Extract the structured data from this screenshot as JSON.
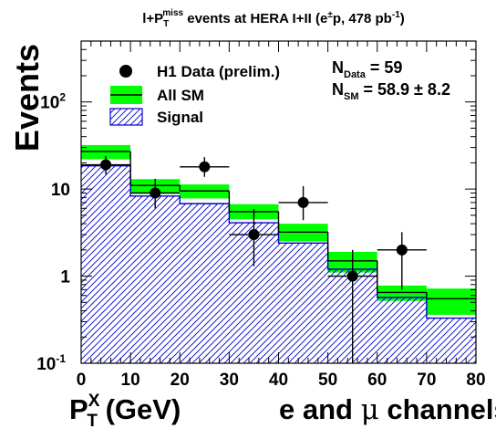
{
  "chart_data": {
    "type": "histogram",
    "title": {
      "prefix": "l+P",
      "sub": "T",
      "sup": "miss",
      "mid": " events at HERA I+II (e",
      "pm": "±",
      "tail": "p, 478 pb",
      "exp": "-1",
      "close": ")"
    },
    "ylabel": "Events",
    "xlabel": {
      "main": "P",
      "sup": "X",
      "sub": "T",
      "unit": " (GeV)",
      "channels_pre": "e and ",
      "mu": "μ",
      "channels_post": " channels"
    },
    "x_edges": [
      0,
      10,
      20,
      30,
      40,
      50,
      60,
      70,
      80
    ],
    "xlim": [
      0,
      80
    ],
    "ylim": [
      0.1,
      500
    ],
    "yscale": "log",
    "x_ticks": [
      "0",
      "10",
      "20",
      "30",
      "40",
      "50",
      "60",
      "70",
      "80"
    ],
    "y_ticks": [
      {
        "value": 0.1,
        "base": "10",
        "exp": "-1"
      },
      {
        "value": 1,
        "base": "1",
        "exp": ""
      },
      {
        "value": 10,
        "base": "10",
        "exp": ""
      },
      {
        "value": 100,
        "base": "10",
        "exp": "2"
      }
    ],
    "all_sm": {
      "values": [
        27,
        11,
        9.5,
        5.5,
        3.2,
        1.5,
        0.65,
        0.55
      ],
      "err_low": [
        22,
        9,
        7.8,
        4.5,
        2.5,
        1.1,
        0.52,
        0.36
      ],
      "err_high": [
        32,
        13,
        11.3,
        6.7,
        4.0,
        1.9,
        0.78,
        0.72
      ]
    },
    "signal": {
      "values": [
        18.5,
        8.3,
        6.8,
        4.1,
        2.4,
        1.2,
        0.57,
        0.33
      ]
    },
    "data": {
      "x": [
        5,
        15,
        25,
        35,
        45,
        55,
        65
      ],
      "y": [
        19,
        9,
        18,
        3,
        7,
        1,
        2
      ],
      "ey_low": [
        4.3,
        3.0,
        4.2,
        1.7,
        2.6,
        0.9,
        1.3
      ],
      "ey_high": [
        4.9,
        4.1,
        5.3,
        2.9,
        3.8,
        1.0,
        1.2
      ]
    },
    "legend": {
      "placement": "top-left",
      "entries": [
        {
          "key": "data",
          "label": "H1 Data (prelim.)"
        },
        {
          "key": "all_sm",
          "label": "All SM"
        },
        {
          "key": "signal",
          "label": "Signal"
        }
      ]
    },
    "annotations": {
      "n_data": {
        "main": "N",
        "sub": "Data",
        "text": " = 59"
      },
      "n_sm": {
        "main": "N",
        "sub": "SM",
        "text": " = 58.9 ± 8.2"
      }
    },
    "colors": {
      "all_sm_band": "#00ff00",
      "signal_hatch": "#0000cc",
      "signal_line": "#0000cc",
      "data": "#000000"
    }
  }
}
